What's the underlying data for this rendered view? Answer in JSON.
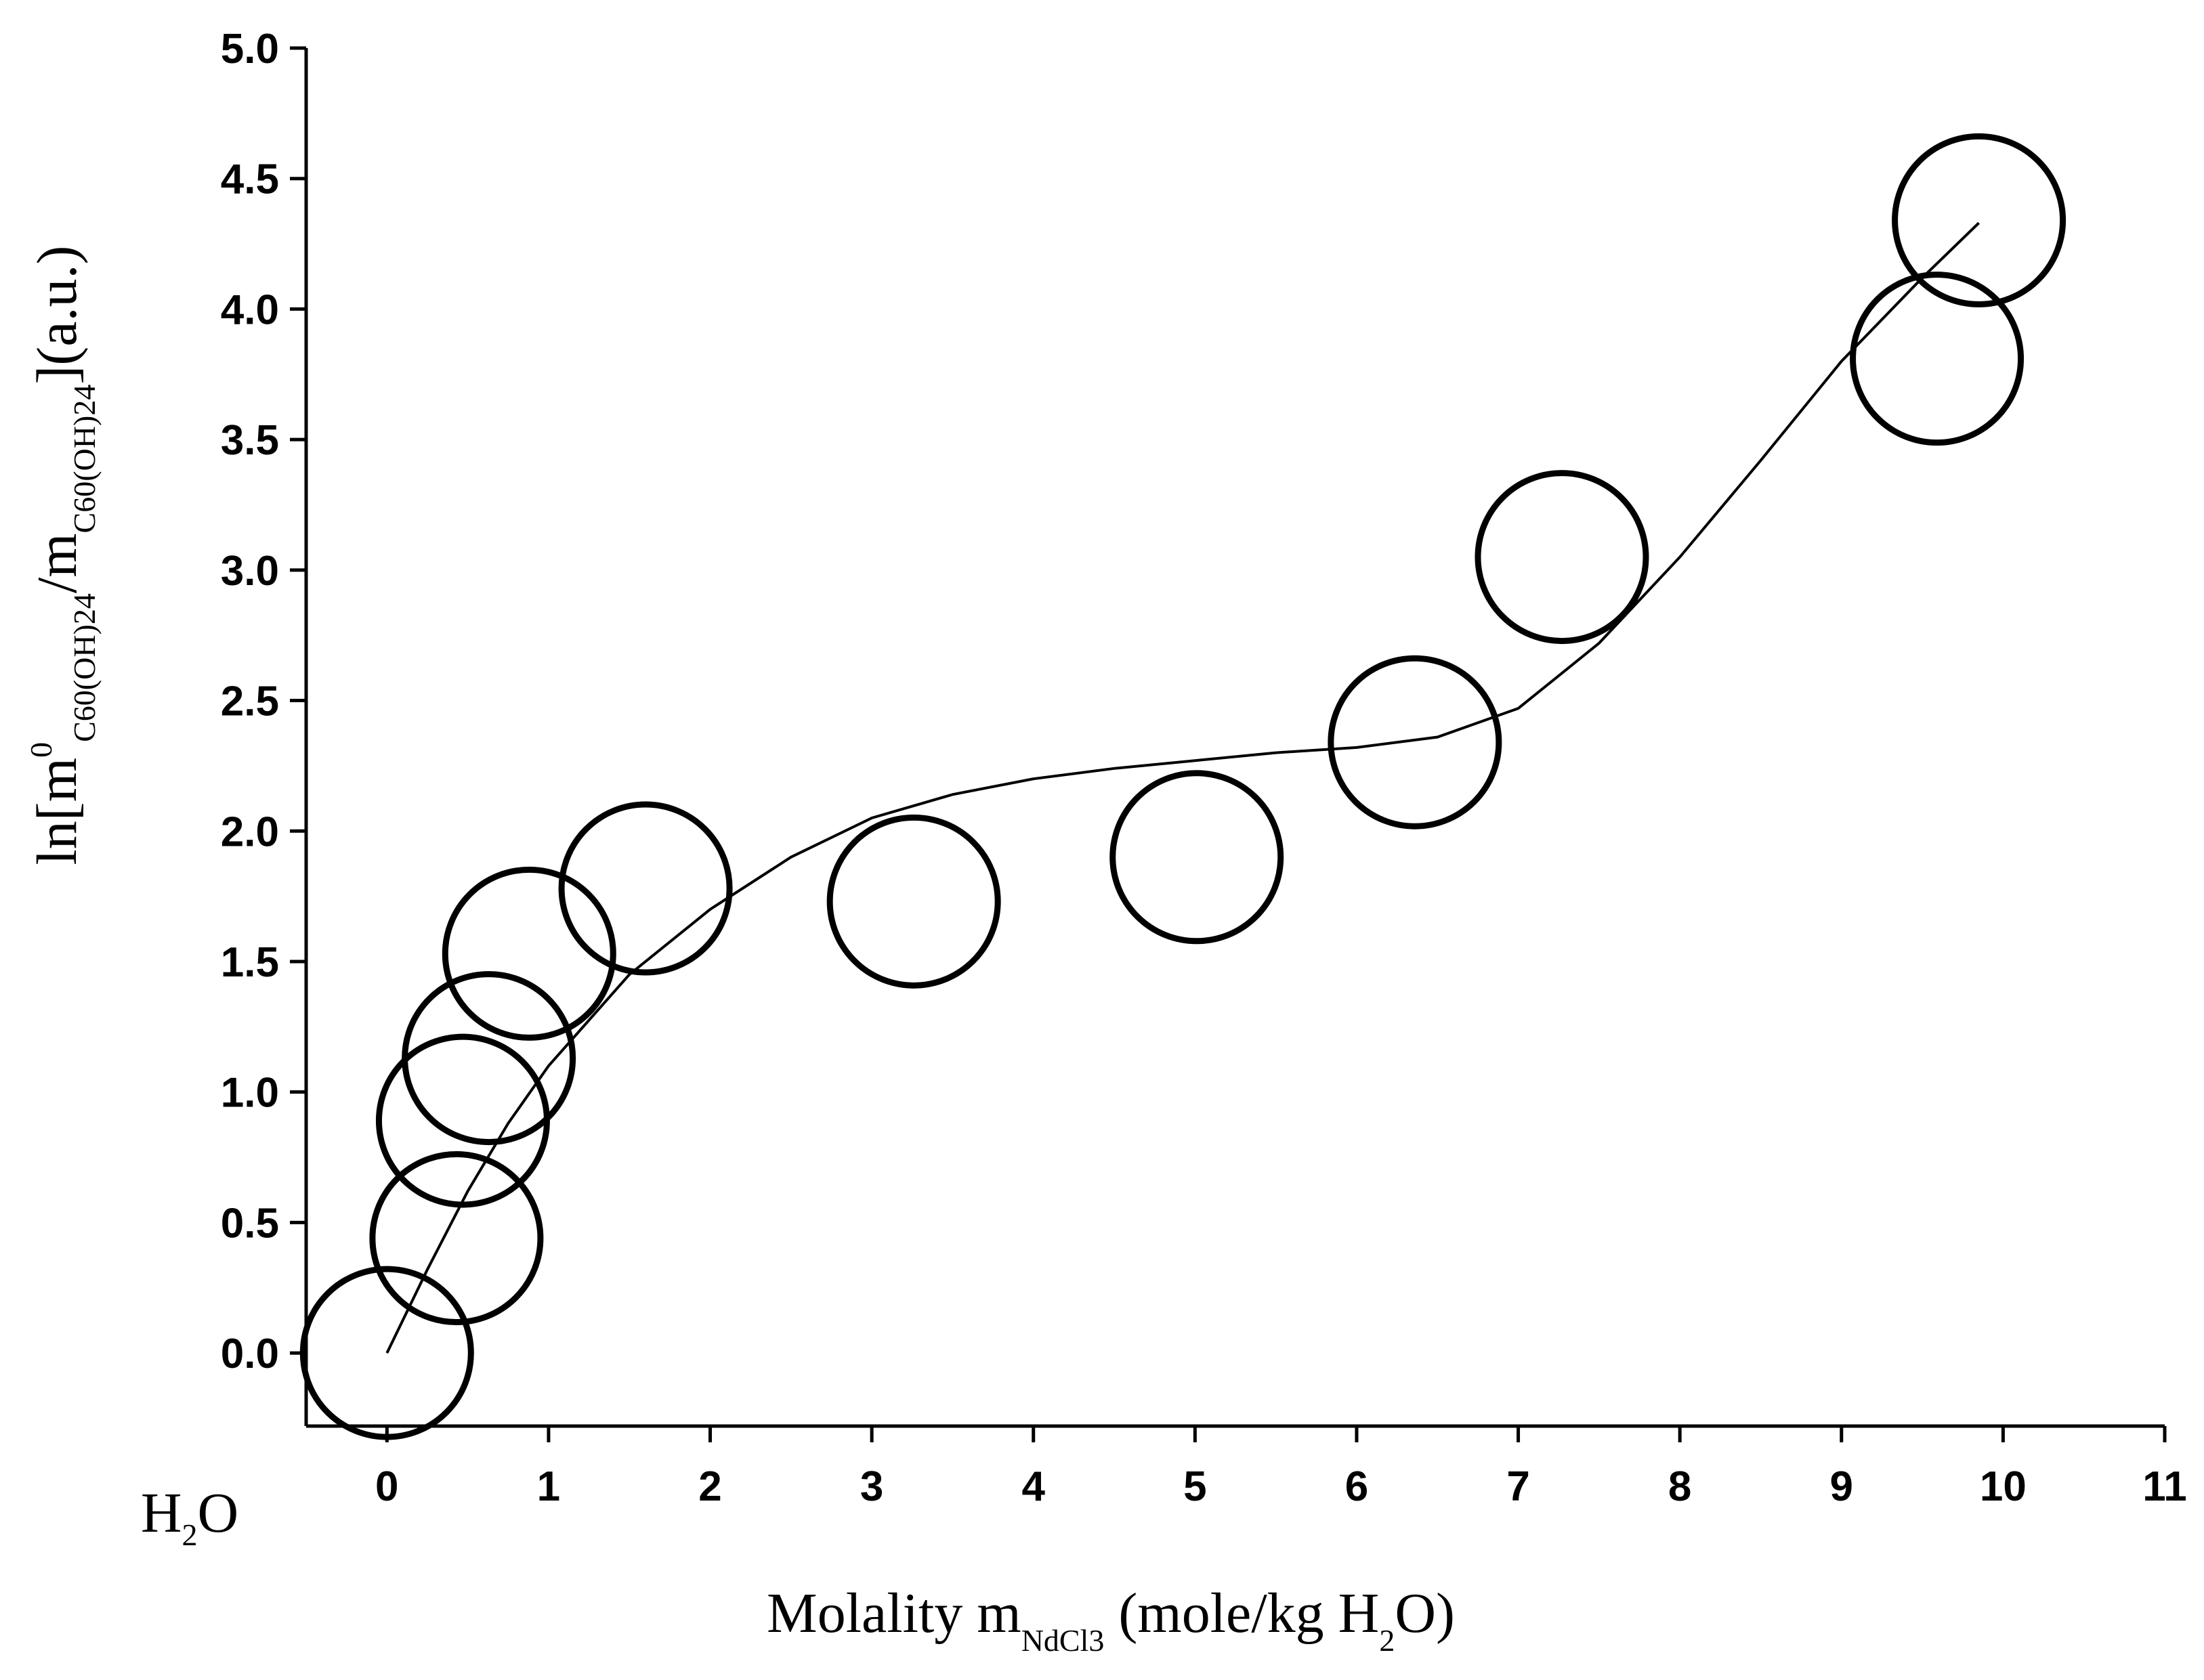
{
  "chart_data": {
    "type": "scatter",
    "y_label": [
      "ln[m",
      "0",
      "C60(OH)24",
      "/m",
      "C60(OH)24",
      "](a.u.)"
    ],
    "x_label": [
      "Molality m",
      "NdCl3",
      " (mole/kg H",
      "2",
      "O)"
    ],
    "annotation": [
      "H",
      "2",
      "O"
    ],
    "points": {
      "color": "#000000",
      "x": [
        0,
        0.43,
        0.47,
        0.63,
        0.88,
        1.6,
        3.26,
        5.01,
        6.36,
        7.27,
        9.59,
        9.85
      ],
      "y": [
        0,
        0.44,
        0.89,
        1.13,
        1.53,
        1.78,
        1.73,
        1.9,
        2.34,
        3.05,
        3.81,
        4.34
      ]
    },
    "fit": {
      "color": "#000000",
      "x": [
        0,
        0.25,
        0.5,
        0.75,
        1,
        1.5,
        2,
        2.5,
        3,
        3.5,
        4,
        4.5,
        5,
        5.5,
        6,
        6.5,
        7,
        7.5,
        8,
        8.5,
        9,
        9.5,
        9.85
      ],
      "y": [
        0,
        0.32,
        0.62,
        0.88,
        1.1,
        1.45,
        1.7,
        1.9,
        2.05,
        2.14,
        2.2,
        2.24,
        2.27,
        2.3,
        2.32,
        2.36,
        2.47,
        2.72,
        3.05,
        3.42,
        3.8,
        4.12,
        4.33
      ]
    },
    "xlim": [
      -0.5,
      11
    ],
    "ylim": [
      -0.28,
      5.0
    ],
    "xticks": [
      0,
      1,
      2,
      3,
      4,
      5,
      6,
      7,
      8,
      9,
      10,
      11
    ],
    "yticks": [
      {
        "value": 0,
        "label": "0.0"
      },
      0.5,
      {
        "value": 1,
        "label": "1.0"
      },
      1.5,
      {
        "value": 2,
        "label": "2.0"
      },
      2.5,
      {
        "value": 3,
        "label": "3.0"
      },
      3.5,
      {
        "value": 4,
        "label": "4.0"
      },
      4.5,
      {
        "value": 5,
        "label": "5.0"
      }
    ]
  }
}
